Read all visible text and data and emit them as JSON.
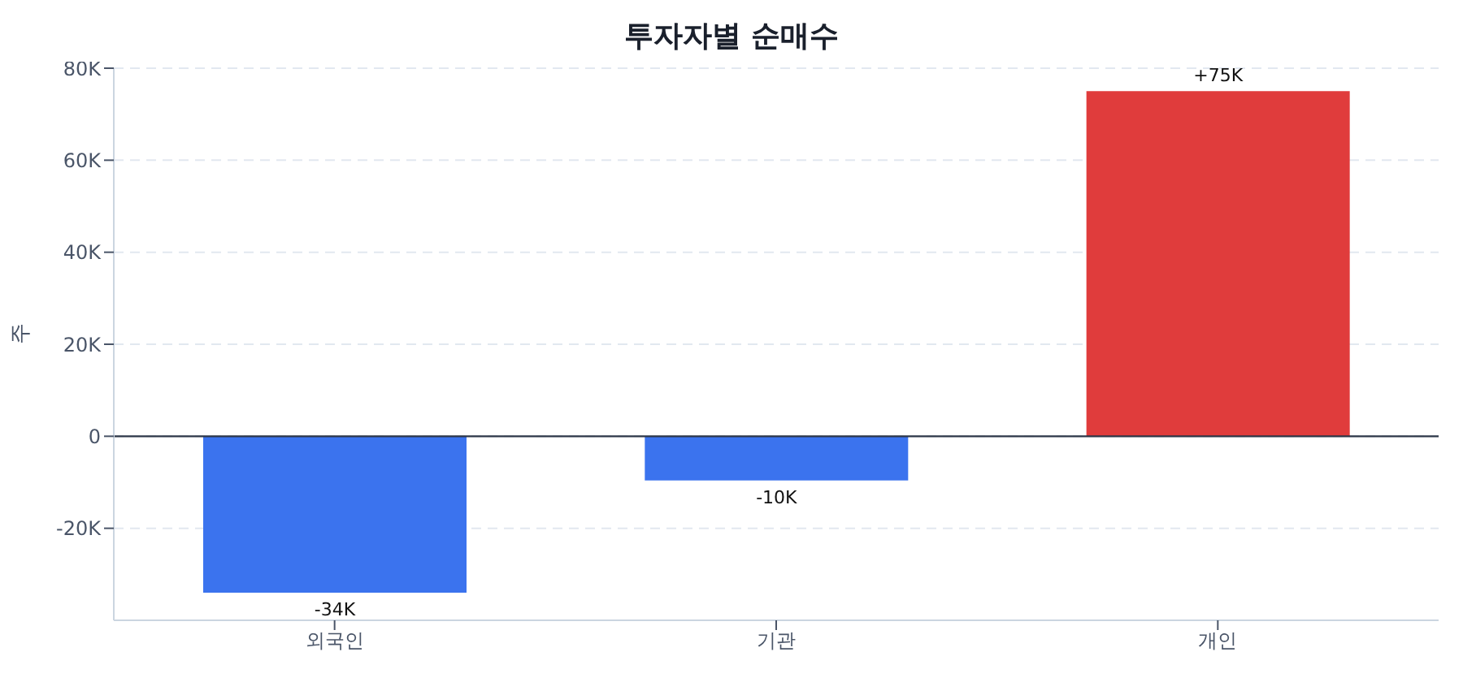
{
  "chart_data": {
    "type": "bar",
    "title": "투자자별 순매수",
    "ylabel": "주",
    "categories": [
      "외국인",
      "기관",
      "개인"
    ],
    "values": [
      -34000,
      -9600,
      75000
    ],
    "colors": [
      "#3b73ee",
      "#3b73ee",
      "#e03c3c"
    ],
    "value_labels": [
      "-34K",
      "-10K",
      "+75K"
    ],
    "ylim": [
      -40000,
      80000
    ],
    "yticks": [
      {
        "value": -20000,
        "label": "-20K"
      },
      0,
      {
        "value": 20000,
        "label": "20K"
      },
      {
        "value": 40000,
        "label": "40K"
      },
      {
        "value": 60000,
        "label": "60K"
      },
      {
        "value": 80000,
        "label": "80K"
      }
    ],
    "ref_lines": [
      {
        "axis": "y",
        "value": 0,
        "label": null,
        "color": "#2d3748"
      }
    ],
    "grid": "y",
    "legend": false
  }
}
